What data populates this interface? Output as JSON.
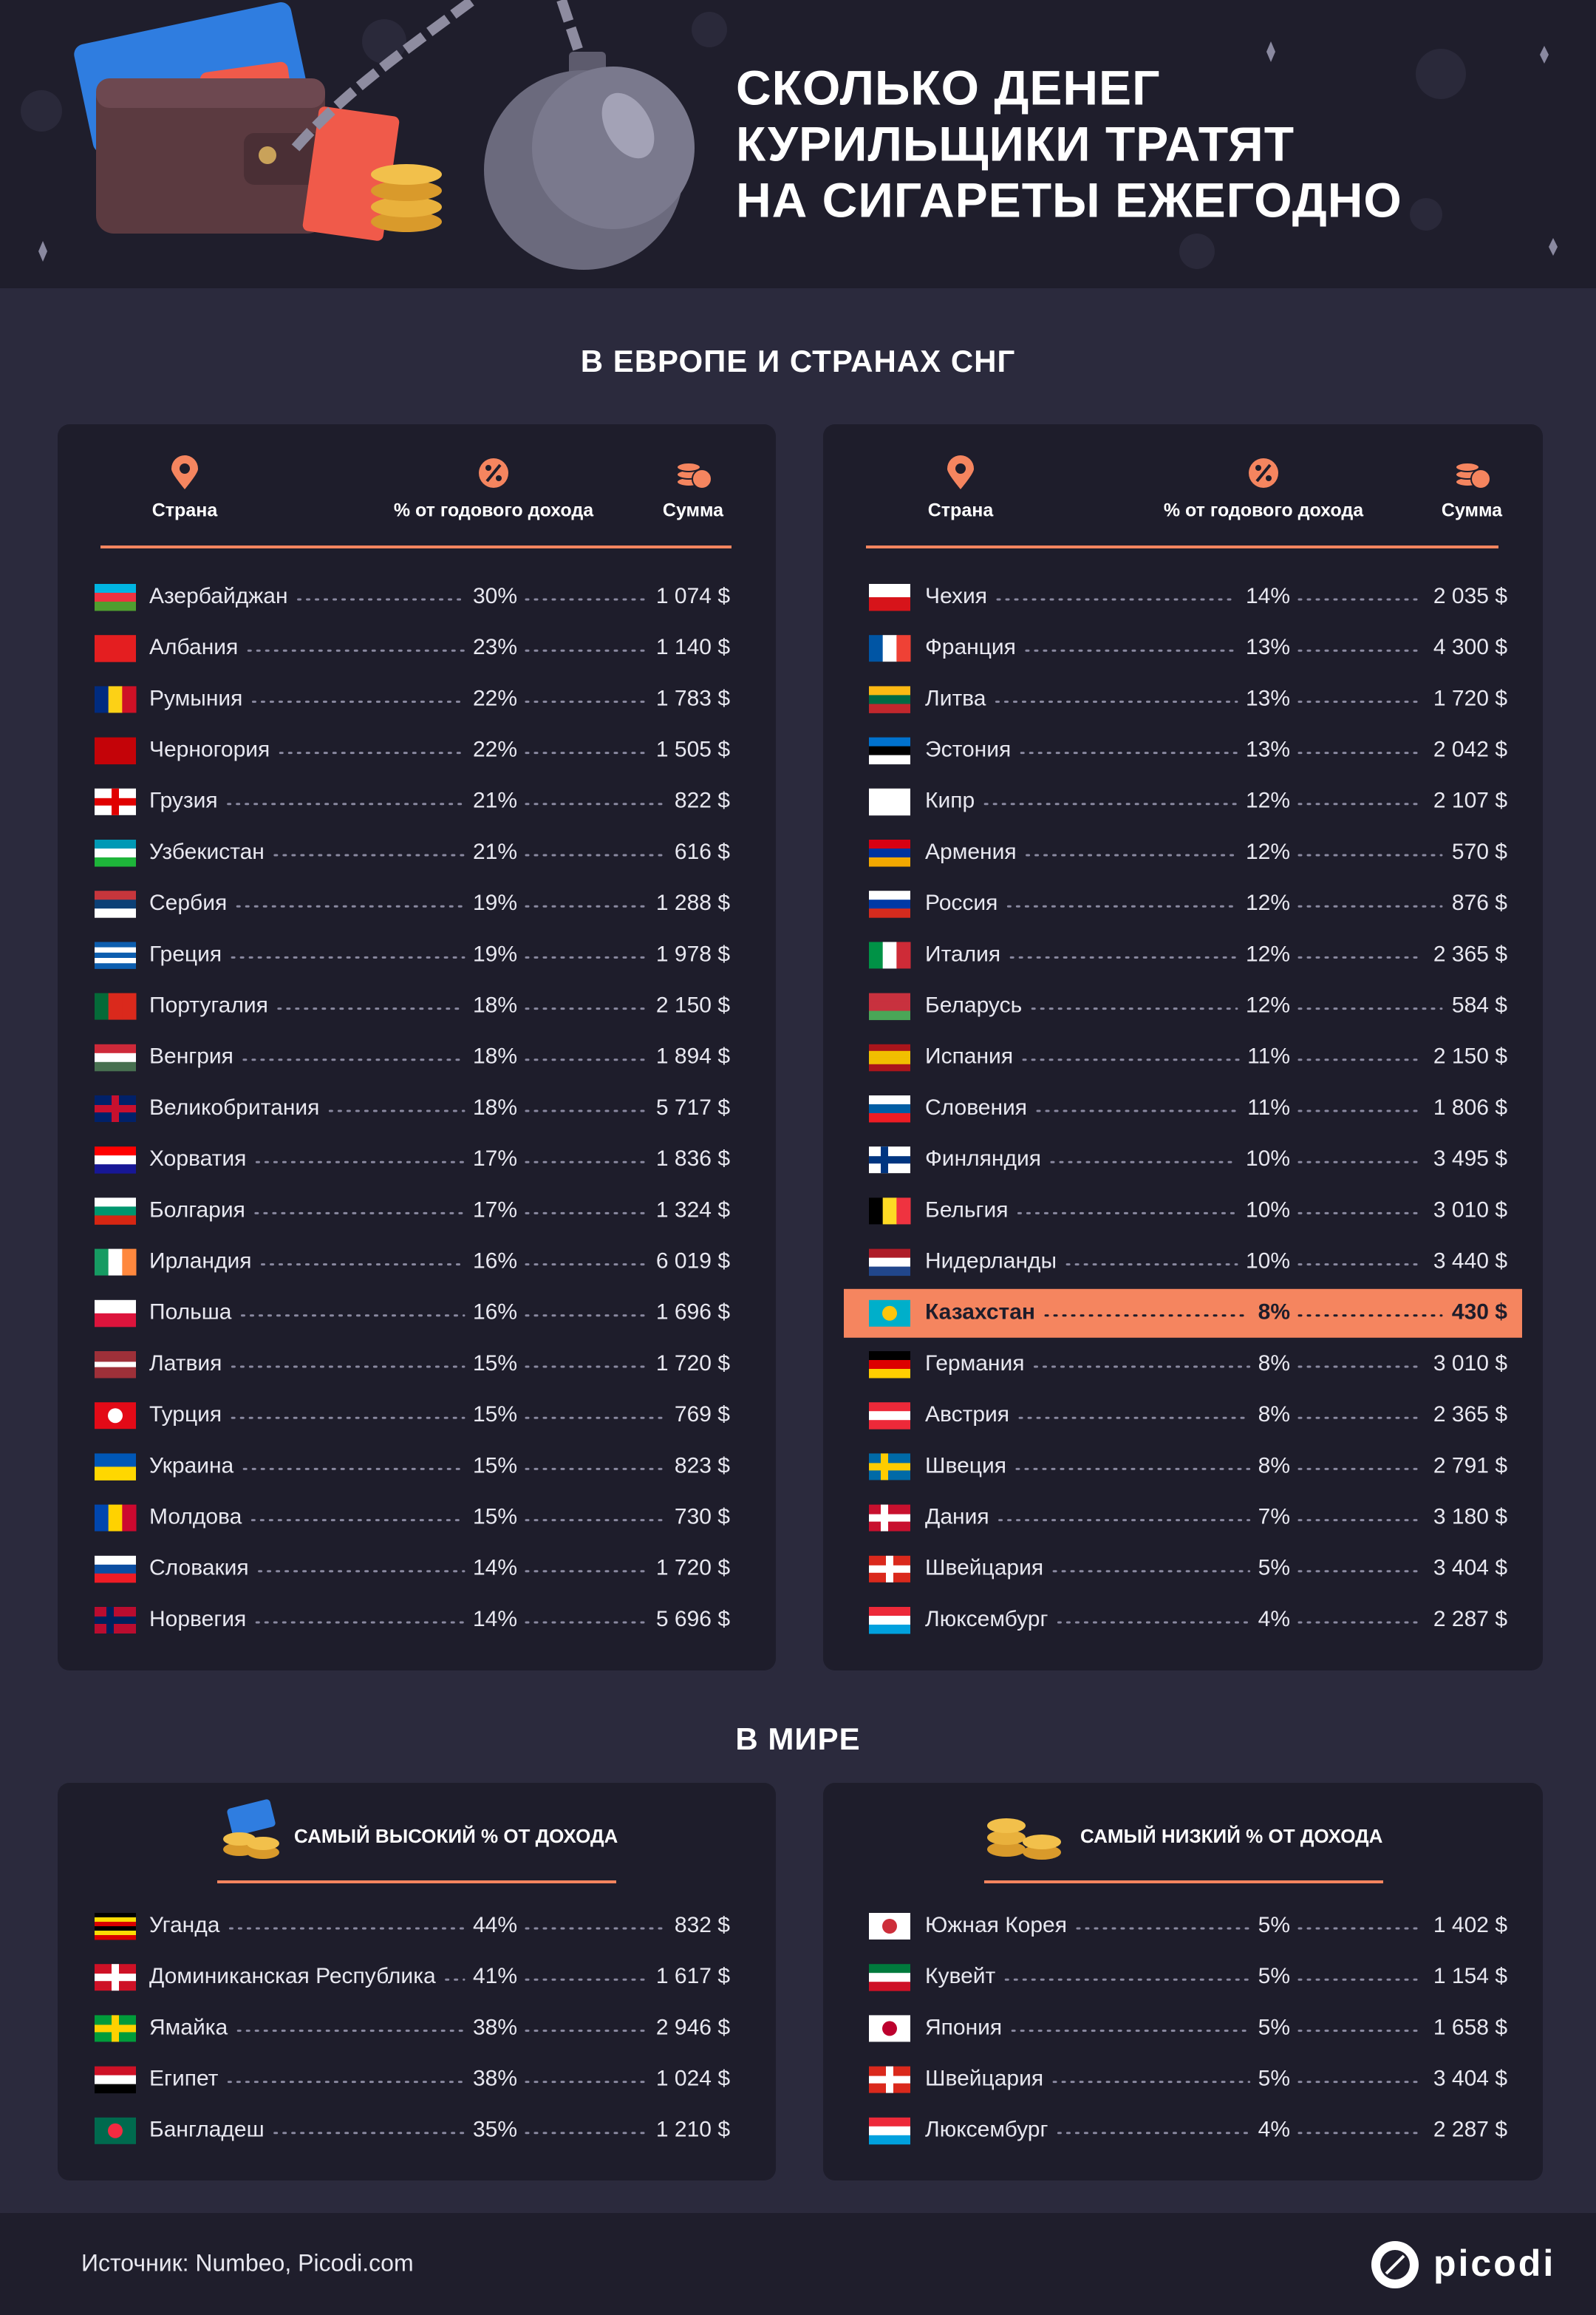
{
  "header": {
    "title_lines": [
      "СКОЛЬКО ДЕНЕГ",
      "КУРИЛЬЩИКИ ТРАТЯТ",
      "НА СИГАРЕТЫ ЕЖЕГОДНО"
    ]
  },
  "europe": {
    "heading": "В ЕВРОПЕ И СТРАНАХ СНГ",
    "tables": [
      {
        "columns": [
          "Страна",
          "% от годового дохода",
          "Сумма"
        ],
        "rows": [
          {
            "country": "Азербайджан",
            "percent": "30%",
            "amount": "1 074 $"
          },
          {
            "country": "Албания",
            "percent": "23%",
            "amount": "1 140 $"
          },
          {
            "country": "Румыния",
            "percent": "22%",
            "amount": "1 783 $"
          },
          {
            "country": "Черногория",
            "percent": "22%",
            "amount": "1 505 $"
          },
          {
            "country": "Грузия",
            "percent": "21%",
            "amount": "822 $"
          },
          {
            "country": "Узбекистан",
            "percent": "21%",
            "amount": "616 $"
          },
          {
            "country": "Сербия",
            "percent": "19%",
            "amount": "1 288 $"
          },
          {
            "country": "Греция",
            "percent": "19%",
            "amount": "1 978 $"
          },
          {
            "country": "Португалия",
            "percent": "18%",
            "amount": "2 150 $"
          },
          {
            "country": "Венгрия",
            "percent": "18%",
            "amount": "1 894 $"
          },
          {
            "country": "Великобритания",
            "percent": "18%",
            "amount": "5 717 $"
          },
          {
            "country": "Хорватия",
            "percent": "17%",
            "amount": "1 836 $"
          },
          {
            "country": "Болгария",
            "percent": "17%",
            "amount": "1 324 $"
          },
          {
            "country": "Ирландия",
            "percent": "16%",
            "amount": "6 019 $"
          },
          {
            "country": "Польша",
            "percent": "16%",
            "amount": "1 696 $"
          },
          {
            "country": "Латвия",
            "percent": "15%",
            "amount": "1 720 $"
          },
          {
            "country": "Турция",
            "percent": "15%",
            "amount": "769 $"
          },
          {
            "country": "Украина",
            "percent": "15%",
            "amount": "823 $"
          },
          {
            "country": "Молдова",
            "percent": "15%",
            "amount": "730 $"
          },
          {
            "country": "Словакия",
            "percent": "14%",
            "amount": "1 720 $"
          },
          {
            "country": "Норвегия",
            "percent": "14%",
            "amount": "5 696 $"
          }
        ]
      },
      {
        "columns": [
          "Страна",
          "% от годового дохода",
          "Сумма"
        ],
        "rows": [
          {
            "country": "Чехия",
            "percent": "14%",
            "amount": "2 035 $"
          },
          {
            "country": "Франция",
            "percent": "13%",
            "amount": "4 300 $"
          },
          {
            "country": "Литва",
            "percent": "13%",
            "amount": "1 720 $"
          },
          {
            "country": "Эстония",
            "percent": "13%",
            "amount": "2 042 $"
          },
          {
            "country": "Кипр",
            "percent": "12%",
            "amount": "2 107 $"
          },
          {
            "country": "Армения",
            "percent": "12%",
            "amount": "570 $"
          },
          {
            "country": "Россия",
            "percent": "12%",
            "amount": "876 $"
          },
          {
            "country": "Италия",
            "percent": "12%",
            "amount": "2 365 $"
          },
          {
            "country": "Беларусь",
            "percent": "12%",
            "amount": "584 $"
          },
          {
            "country": "Испания",
            "percent": "11%",
            "amount": "2 150 $"
          },
          {
            "country": "Словения",
            "percent": "11%",
            "amount": "1 806 $"
          },
          {
            "country": "Финляндия",
            "percent": "10%",
            "amount": "3 495 $"
          },
          {
            "country": "Бельгия",
            "percent": "10%",
            "amount": "3 010 $"
          },
          {
            "country": "Нидерланды",
            "percent": "10%",
            "amount": "3 440 $"
          },
          {
            "country": "Казахстан",
            "percent": "8%",
            "amount": "430 $",
            "highlight": true
          },
          {
            "country": "Германия",
            "percent": "8%",
            "amount": "3 010 $"
          },
          {
            "country": "Австрия",
            "percent": "8%",
            "amount": "2 365 $"
          },
          {
            "country": "Швеция",
            "percent": "8%",
            "amount": "2 791 $"
          },
          {
            "country": "Дания",
            "percent": "7%",
            "amount": "3 180 $"
          },
          {
            "country": "Швейцария",
            "percent": "5%",
            "amount": "3 404 $"
          },
          {
            "country": "Люксембург",
            "percent": "4%",
            "amount": "2 287 $"
          }
        ]
      }
    ]
  },
  "world": {
    "heading": "В МИРЕ",
    "tables": [
      {
        "title": "САМЫЙ ВЫСОКИЙ % ОТ ДОХОДА",
        "rows": [
          {
            "country": "Уганда",
            "percent": "44%",
            "amount": "832 $"
          },
          {
            "country": "Доминиканская Республика",
            "percent": "41%",
            "amount": "1 617 $"
          },
          {
            "country": "Ямайка",
            "percent": "38%",
            "amount": "2 946 $"
          },
          {
            "country": "Египет",
            "percent": "38%",
            "amount": "1 024 $"
          },
          {
            "country": "Бангладеш",
            "percent": "35%",
            "amount": "1 210 $"
          }
        ]
      },
      {
        "title": "САМЫЙ НИЗКИЙ % ОТ ДОХОДА",
        "rows": [
          {
            "country": "Южная Корея",
            "percent": "5%",
            "amount": "1 402 $"
          },
          {
            "country": "Кувейт",
            "percent": "5%",
            "amount": "1 154 $"
          },
          {
            "country": "Япония",
            "percent": "5%",
            "amount": "1 658 $"
          },
          {
            "country": "Швейцария",
            "percent": "5%",
            "amount": "3 404 $"
          },
          {
            "country": "Люксембург",
            "percent": "4%",
            "amount": "2 287 $"
          }
        ]
      }
    ]
  },
  "footer": {
    "source": "Источник: Numbeo, Picodi.com",
    "logo": "picodi"
  }
}
